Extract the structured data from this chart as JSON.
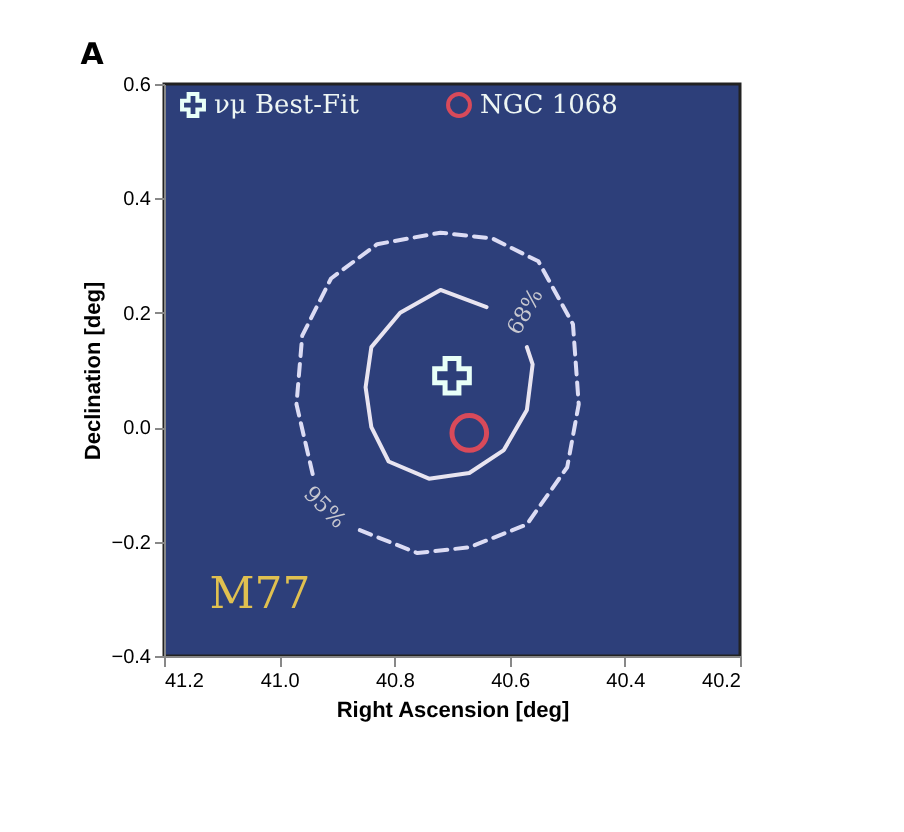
{
  "chart_data": {
    "type": "line",
    "title": "A",
    "xlabel": "Right Ascension [deg]",
    "ylabel": "Declination [deg]",
    "xlim": [
      41.2,
      40.2
    ],
    "xticks": [
      41.2,
      {
        "value": 41.0,
        "label": "41.0"
      },
      40.8,
      40.6,
      40.4,
      40.2
    ],
    "ylim": [
      -0.4,
      0.6
    ],
    "yticks": [
      -0.4,
      -0.2,
      {
        "value": 0.0,
        "label": "0.0"
      },
      0.2,
      0.4,
      0.6
    ],
    "grid": false,
    "legend": "top",
    "series": [
      {
        "line_style": "solid",
        "color": "#e8e4f0",
        "x": [
          40.64,
          40.72,
          40.79,
          40.84,
          40.85,
          40.84,
          40.81,
          40.74,
          40.67,
          40.61,
          40.57,
          40.56,
          40.57
        ],
        "values": [
          0.21,
          0.24,
          0.2,
          0.14,
          0.07,
          0.0,
          -0.06,
          -0.09,
          -0.08,
          -0.04,
          0.03,
          0.11,
          0.14
        ]
      },
      {
        "line_style": "dashed",
        "color": "#dcdcf4",
        "x": [
          40.86,
          40.76,
          40.67,
          40.57,
          40.5,
          40.48,
          40.49,
          40.55,
          40.63,
          40.72,
          40.83,
          40.91,
          40.96,
          40.97,
          40.94
        ],
        "values": [
          -0.18,
          -0.22,
          -0.21,
          -0.17,
          -0.07,
          0.04,
          0.18,
          0.29,
          0.33,
          0.34,
          0.32,
          0.26,
          0.16,
          0.04,
          -0.09
        ]
      },
      {
        "type": "scatter",
        "name": "νμ Best-Fit",
        "marker": "cross",
        "color": "#e8fff8",
        "x": [
          40.7
        ],
        "values": [
          0.09
        ]
      },
      {
        "type": "scatter",
        "name": "NGC 1068",
        "marker": "circle",
        "color": "#d84a5a",
        "x": [
          40.67
        ],
        "values": [
          -0.01
        ]
      }
    ],
    "annotations": [
      "68%",
      "95%",
      "M77"
    ]
  }
}
